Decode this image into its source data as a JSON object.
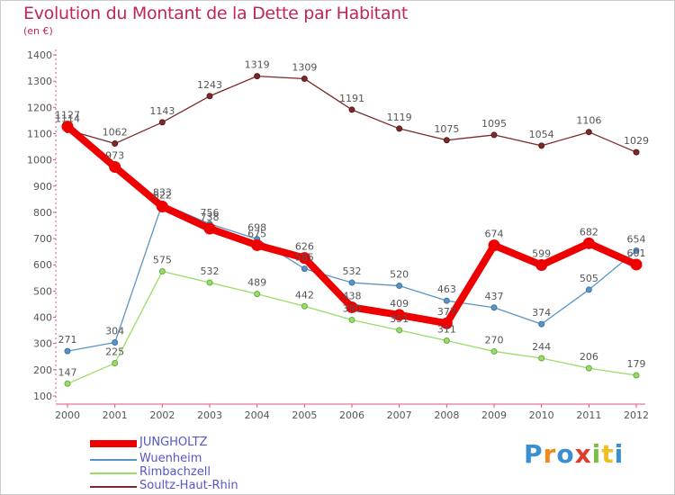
{
  "title": "Evolution du Montant de la Dette par Habitant",
  "unit": "(en €)",
  "logo_text": "Proxiti",
  "chart_data": {
    "type": "line",
    "title": "Evolution du Montant de la Dette par Habitant",
    "ylabel": "(en €)",
    "xlabel": "",
    "x": [
      "2000",
      "2001",
      "2002",
      "2003",
      "2004",
      "2005",
      "2006",
      "2007",
      "2008",
      "2009",
      "2010",
      "2011",
      "2012"
    ],
    "ylim": [
      100,
      1400
    ],
    "yticks": [
      100,
      200,
      300,
      400,
      500,
      600,
      700,
      800,
      900,
      1000,
      1100,
      1200,
      1300,
      1400
    ],
    "grid": false,
    "legend_position": "bottom-left",
    "series": [
      {
        "name": "JUNGHOLTZ",
        "color": "#ee0000",
        "values": [
          1127,
          973,
          822,
          738,
          675,
          626,
          438,
          409,
          377,
          674,
          599,
          682,
          601
        ]
      },
      {
        "name": "Wuenheim",
        "color": "#5a94c4",
        "values": [
          271,
          304,
          833,
          756,
          698,
          585,
          532,
          520,
          463,
          437,
          374,
          505,
          654
        ]
      },
      {
        "name": "Rimbachzell",
        "color": "#99dd66",
        "values": [
          147,
          225,
          575,
          532,
          489,
          442,
          390,
          351,
          311,
          270,
          244,
          206,
          179
        ]
      },
      {
        "name": "Soultz-Haut-Rhin",
        "color": "#7a2a2a",
        "values": [
          1114,
          1062,
          1143,
          1243,
          1319,
          1309,
          1191,
          1119,
          1075,
          1095,
          1054,
          1106,
          1029
        ]
      }
    ]
  }
}
